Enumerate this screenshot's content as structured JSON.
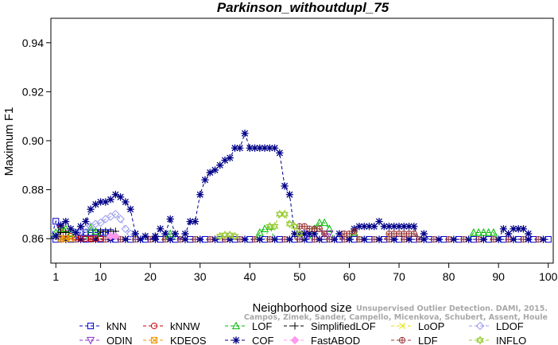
{
  "chart_data": {
    "type": "line",
    "title": "Parkinson_withoutdupl_75",
    "xlabel": "Neighborhood size",
    "ylabel": "Maximum F1",
    "xlim": [
      0,
      101
    ],
    "ylim": [
      0.85,
      0.95
    ],
    "x_ticks": [
      1,
      10,
      20,
      30,
      40,
      50,
      60,
      70,
      80,
      90,
      100
    ],
    "y_ticks": [
      0.86,
      0.88,
      0.9,
      0.92,
      0.94
    ],
    "y_tick_labels": [
      "0.86",
      "0.88",
      "0.90",
      "0.92",
      "0.94"
    ],
    "grid": false,
    "legend_position": "bottom",
    "baseline": 0.8597,
    "series": [
      {
        "name": "kNN",
        "color": "#0000cc",
        "marker": "square",
        "points": [
          [
            1,
            0.8671
          ],
          [
            6,
            0.8625
          ],
          [
            7,
            0.8625
          ],
          [
            8,
            0.8625
          ],
          [
            9,
            0.8625
          ],
          [
            10,
            0.8625
          ],
          [
            11,
            0.8625
          ],
          [
            12,
            0.8625
          ]
        ]
      },
      {
        "name": "kNNW",
        "color": "#cc0000",
        "marker": "circle",
        "points": [
          [
            2,
            0.8645
          ],
          [
            3,
            0.862
          ],
          [
            4,
            0.861
          ],
          [
            5,
            0.8605
          ],
          [
            6,
            0.86
          ],
          [
            7,
            0.86
          ],
          [
            8,
            0.86
          ],
          [
            9,
            0.86
          ],
          [
            10,
            0.86
          ]
        ]
      },
      {
        "name": "LOF",
        "color": "#00bb00",
        "marker": "triangle-up",
        "points": [
          [
            1,
            0.8625
          ],
          [
            2,
            0.864
          ],
          [
            3,
            0.864
          ],
          [
            4,
            0.862
          ],
          [
            8,
            0.8645
          ],
          [
            9,
            0.863
          ],
          [
            24,
            0.862
          ],
          [
            42,
            0.8625
          ],
          [
            43,
            0.864
          ],
          [
            44,
            0.865
          ],
          [
            53,
            0.864
          ],
          [
            54,
            0.8665
          ],
          [
            55,
            0.8665
          ],
          [
            56,
            0.864
          ],
          [
            61,
            0.8625
          ],
          [
            85,
            0.8625
          ],
          [
            86,
            0.8625
          ],
          [
            87,
            0.8625
          ],
          [
            88,
            0.8625
          ],
          [
            89,
            0.8625
          ]
        ]
      },
      {
        "name": "SimplifiedLOF",
        "color": "#000000",
        "marker": "plus",
        "points": [
          [
            2,
            0.8625
          ],
          [
            3,
            0.8625
          ],
          [
            10,
            0.863
          ],
          [
            11,
            0.863
          ],
          [
            12,
            0.863
          ],
          [
            13,
            0.863
          ]
        ]
      },
      {
        "name": "LoOP",
        "color": "#e6e600",
        "marker": "cross",
        "points": [
          [
            1,
            0.861
          ],
          [
            2,
            0.86
          ],
          [
            3,
            0.86
          ]
        ]
      },
      {
        "name": "LDOF",
        "color": "#9999ee",
        "marker": "diamond",
        "points": [
          [
            1,
            0.861
          ],
          [
            5,
            0.8625
          ],
          [
            6,
            0.863
          ],
          [
            7,
            0.864
          ],
          [
            8,
            0.865
          ],
          [
            9,
            0.866
          ],
          [
            10,
            0.8665
          ],
          [
            11,
            0.868
          ],
          [
            12,
            0.869
          ],
          [
            13,
            0.87
          ],
          [
            14,
            0.868
          ],
          [
            15,
            0.864
          ],
          [
            16,
            0.862
          ]
        ]
      },
      {
        "name": "ODIN",
        "color": "#8833cc",
        "marker": "triangle-down",
        "points": [
          [
            51,
            0.862
          ],
          [
            55,
            0.862
          ],
          [
            56,
            0.862
          ]
        ]
      },
      {
        "name": "KDEOS",
        "color": "#ee9900",
        "marker": "square-x",
        "points": [
          [
            2,
            0.86
          ],
          [
            3,
            0.86
          ],
          [
            4,
            0.86
          ]
        ]
      },
      {
        "name": "COF",
        "color": "#000088",
        "marker": "asterisk",
        "points": [
          [
            1,
            0.861
          ],
          [
            2,
            0.8655
          ],
          [
            3,
            0.867
          ],
          [
            4,
            0.864
          ],
          [
            5,
            0.8625
          ],
          [
            6,
            0.865
          ],
          [
            7,
            0.867
          ],
          [
            8,
            0.872
          ],
          [
            9,
            0.874
          ],
          [
            10,
            0.875
          ],
          [
            11,
            0.875
          ],
          [
            12,
            0.876
          ],
          [
            13,
            0.878
          ],
          [
            14,
            0.877
          ],
          [
            15,
            0.875
          ],
          [
            16,
            0.872
          ],
          [
            17,
            0.862
          ],
          [
            19,
            0.861
          ],
          [
            21,
            0.861
          ],
          [
            22,
            0.864
          ],
          [
            23,
            0.862
          ],
          [
            24,
            0.868
          ],
          [
            25,
            0.862
          ],
          [
            27,
            0.862
          ],
          [
            28,
            0.867
          ],
          [
            29,
            0.867
          ],
          [
            30,
            0.878
          ],
          [
            31,
            0.884
          ],
          [
            32,
            0.887
          ],
          [
            33,
            0.888
          ],
          [
            34,
            0.89
          ],
          [
            35,
            0.892
          ],
          [
            36,
            0.893
          ],
          [
            37,
            0.897
          ],
          [
            38,
            0.897
          ],
          [
            39,
            0.903
          ],
          [
            40,
            0.897
          ],
          [
            41,
            0.897
          ],
          [
            42,
            0.897
          ],
          [
            43,
            0.897
          ],
          [
            44,
            0.897
          ],
          [
            45,
            0.897
          ],
          [
            46,
            0.895
          ],
          [
            47,
            0.8815
          ],
          [
            48,
            0.878
          ],
          [
            49,
            0.862
          ],
          [
            50,
            0.862
          ],
          [
            51,
            0.862
          ],
          [
            52,
            0.862
          ],
          [
            53,
            0.862
          ],
          [
            58,
            0.862
          ],
          [
            61,
            0.864
          ],
          [
            62,
            0.865
          ],
          [
            63,
            0.865
          ],
          [
            64,
            0.865
          ],
          [
            65,
            0.865
          ],
          [
            66,
            0.867
          ],
          [
            67,
            0.865
          ],
          [
            68,
            0.865
          ],
          [
            69,
            0.865
          ],
          [
            70,
            0.865
          ],
          [
            71,
            0.865
          ],
          [
            72,
            0.865
          ],
          [
            73,
            0.865
          ],
          [
            75,
            0.862
          ],
          [
            91,
            0.864
          ],
          [
            92,
            0.862
          ],
          [
            93,
            0.864
          ],
          [
            94,
            0.864
          ],
          [
            95,
            0.864
          ],
          [
            96,
            0.862
          ]
        ]
      },
      {
        "name": "FastABOD",
        "color": "#ff99ee",
        "marker": "diamond-filled",
        "points": [
          [
            12,
            0.861
          ],
          [
            13,
            0.861
          ]
        ]
      },
      {
        "name": "LDF",
        "color": "#993333",
        "marker": "circle-plus",
        "points": [
          [
            50,
            0.865
          ],
          [
            51,
            0.865
          ],
          [
            52,
            0.864
          ],
          [
            53,
            0.864
          ],
          [
            54,
            0.864
          ],
          [
            55,
            0.862
          ],
          [
            59,
            0.862
          ],
          [
            60,
            0.862
          ],
          [
            61,
            0.863
          ],
          [
            68,
            0.862
          ],
          [
            69,
            0.862
          ],
          [
            70,
            0.862
          ],
          [
            71,
            0.862
          ],
          [
            72,
            0.862
          ],
          [
            73,
            0.862
          ]
        ]
      },
      {
        "name": "INFLO",
        "color": "#99cc33",
        "marker": "hexagram",
        "points": [
          [
            34,
            0.861
          ],
          [
            35,
            0.8615
          ],
          [
            36,
            0.8615
          ],
          [
            37,
            0.861
          ],
          [
            44,
            0.865
          ],
          [
            45,
            0.865
          ],
          [
            46,
            0.87
          ],
          [
            47,
            0.87
          ],
          [
            48,
            0.866
          ],
          [
            49,
            0.865
          ],
          [
            50,
            0.862
          ]
        ]
      }
    ]
  },
  "watermark": {
    "line1": "Unsupervised Outlier Detection. DAMI, 2015.",
    "line2": "Campos, Zimek, Sander, Campello, Micenkova, Schubert, Assent, Houle"
  }
}
